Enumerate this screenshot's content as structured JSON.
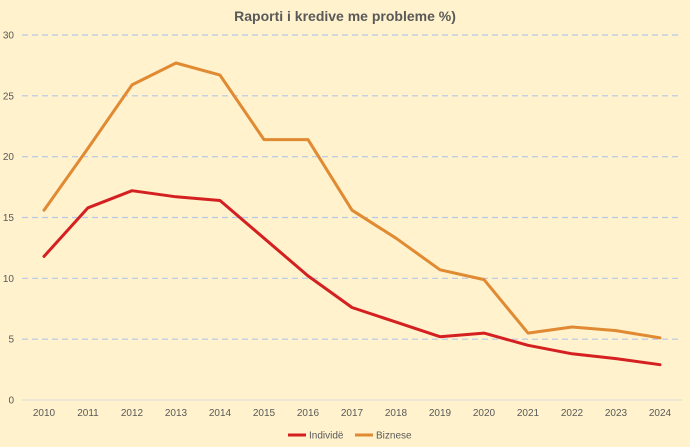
{
  "chart_data": {
    "type": "line",
    "title": "Raporti i kredive me probleme %)",
    "categories": [
      "2010",
      "2011",
      "2012",
      "2013",
      "2014",
      "2015",
      "2016",
      "2017",
      "2018",
      "2019",
      "2020",
      "2021",
      "2022",
      "2023",
      "2024"
    ],
    "series": [
      {
        "name": "Individë",
        "color": "#D42020",
        "values": [
          11.8,
          15.8,
          17.2,
          16.7,
          16.4,
          13.3,
          10.2,
          7.6,
          6.4,
          5.2,
          5.5,
          4.5,
          3.8,
          3.4,
          2.9
        ]
      },
      {
        "name": "Biznese",
        "color": "#E08A33",
        "values": [
          15.6,
          20.7,
          25.9,
          27.7,
          26.7,
          21.4,
          21.4,
          15.6,
          13.3,
          10.7,
          9.9,
          5.5,
          6.0,
          5.7,
          5.1
        ]
      }
    ],
    "ylim": [
      0,
      30
    ],
    "yticks": [
      0,
      5,
      10,
      15,
      20,
      25,
      30
    ],
    "grid": true,
    "legend_position": "bottom-center"
  }
}
